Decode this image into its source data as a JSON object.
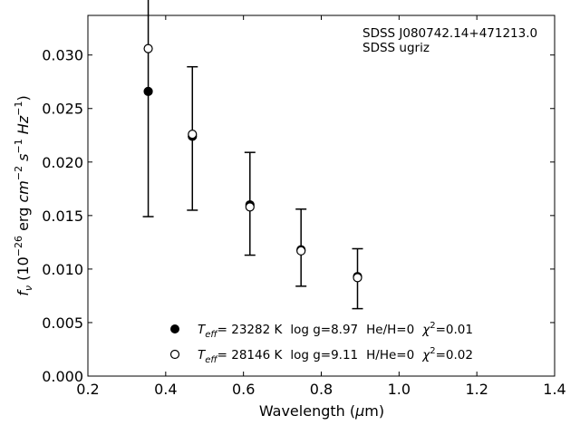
{
  "chart_data": {
    "type": "scatter",
    "title": "",
    "xlabel": "Wavelength (μm)",
    "ylabel": "f_ν (10^-26 erg cm^-2 s^-1 Hz^-1)",
    "xlim": [
      0.2,
      1.4
    ],
    "ylim": [
      0.0,
      0.0337
    ],
    "xticks": [
      0.2,
      0.4,
      0.6,
      0.8,
      1.0,
      1.2,
      1.4
    ],
    "xtick_labels": [
      "0.2",
      "0.4",
      "0.6",
      "0.8",
      "1.0",
      "1.2",
      "1.4"
    ],
    "yticks": [
      0.0,
      0.005,
      0.01,
      0.015,
      0.02,
      0.025,
      0.03
    ],
    "ytick_labels": [
      "0.000",
      "0.005",
      "0.010",
      "0.015",
      "0.020",
      "0.025",
      "0.030"
    ],
    "grid": false,
    "annotations": [
      "SDSS J080742.14+471213.0",
      "SDSS ugriz"
    ],
    "observed": {
      "x": [
        0.3551,
        0.4686,
        0.6166,
        0.748,
        0.8932
      ],
      "y": [
        0.0253,
        0.0222,
        0.0161,
        0.012,
        0.0091
      ],
      "yerr": [
        0.0104,
        0.0067,
        0.0048,
        0.0036,
        0.0028
      ],
      "style": "errorbar-caps"
    },
    "series": [
      {
        "name": "T_eff= 23282 K  log g=8.97  He/H=0  χ²=0.01",
        "marker": "filled-circle",
        "x": [
          0.3551,
          0.4686,
          0.6166,
          0.748,
          0.8932
        ],
        "y": [
          0.0266,
          0.0224,
          0.016,
          0.0118,
          0.0093
        ]
      },
      {
        "name": "T_eff= 28146 K  log g=9.11  H/He=0  χ²=0.02",
        "marker": "open-circle",
        "x": [
          0.3551,
          0.4686,
          0.6166,
          0.748,
          0.8932
        ],
        "y": [
          0.0306,
          0.0226,
          0.0158,
          0.0117,
          0.0092
        ]
      }
    ],
    "legend": {
      "position": "lower-center",
      "entries": [
        {
          "teff_label": "T",
          "teff_sub": "eff",
          "teff_value": "= 23282 K",
          "logg": "log g=8.97",
          "comp": "He/H=0",
          "chi_label": "χ",
          "chi_sup": "2",
          "chi_value": "=0.01"
        },
        {
          "teff_label": "T",
          "teff_sub": "eff",
          "teff_value": "= 28146 K",
          "logg": "log g=9.11",
          "comp": "H/He=0",
          "chi_label": "χ",
          "chi_sup": "2",
          "chi_value": "=0.02"
        }
      ]
    },
    "axis_text": {
      "xlabel_main": "Wavelength (",
      "xlabel_mu": "μ",
      "xlabel_unit": "m)",
      "ylabel_f": "f",
      "ylabel_nu": "ν",
      "ylabel_open": " (10",
      "ylabel_exp1": "−26",
      "ylabel_erg": " erg ",
      "ylabel_cm": "cm",
      "ylabel_exp2": "−2",
      "ylabel_s": " s",
      "ylabel_exp3": "−1",
      "ylabel_hz": " Hz",
      "ylabel_exp4": "−1",
      "ylabel_close": ")"
    }
  }
}
